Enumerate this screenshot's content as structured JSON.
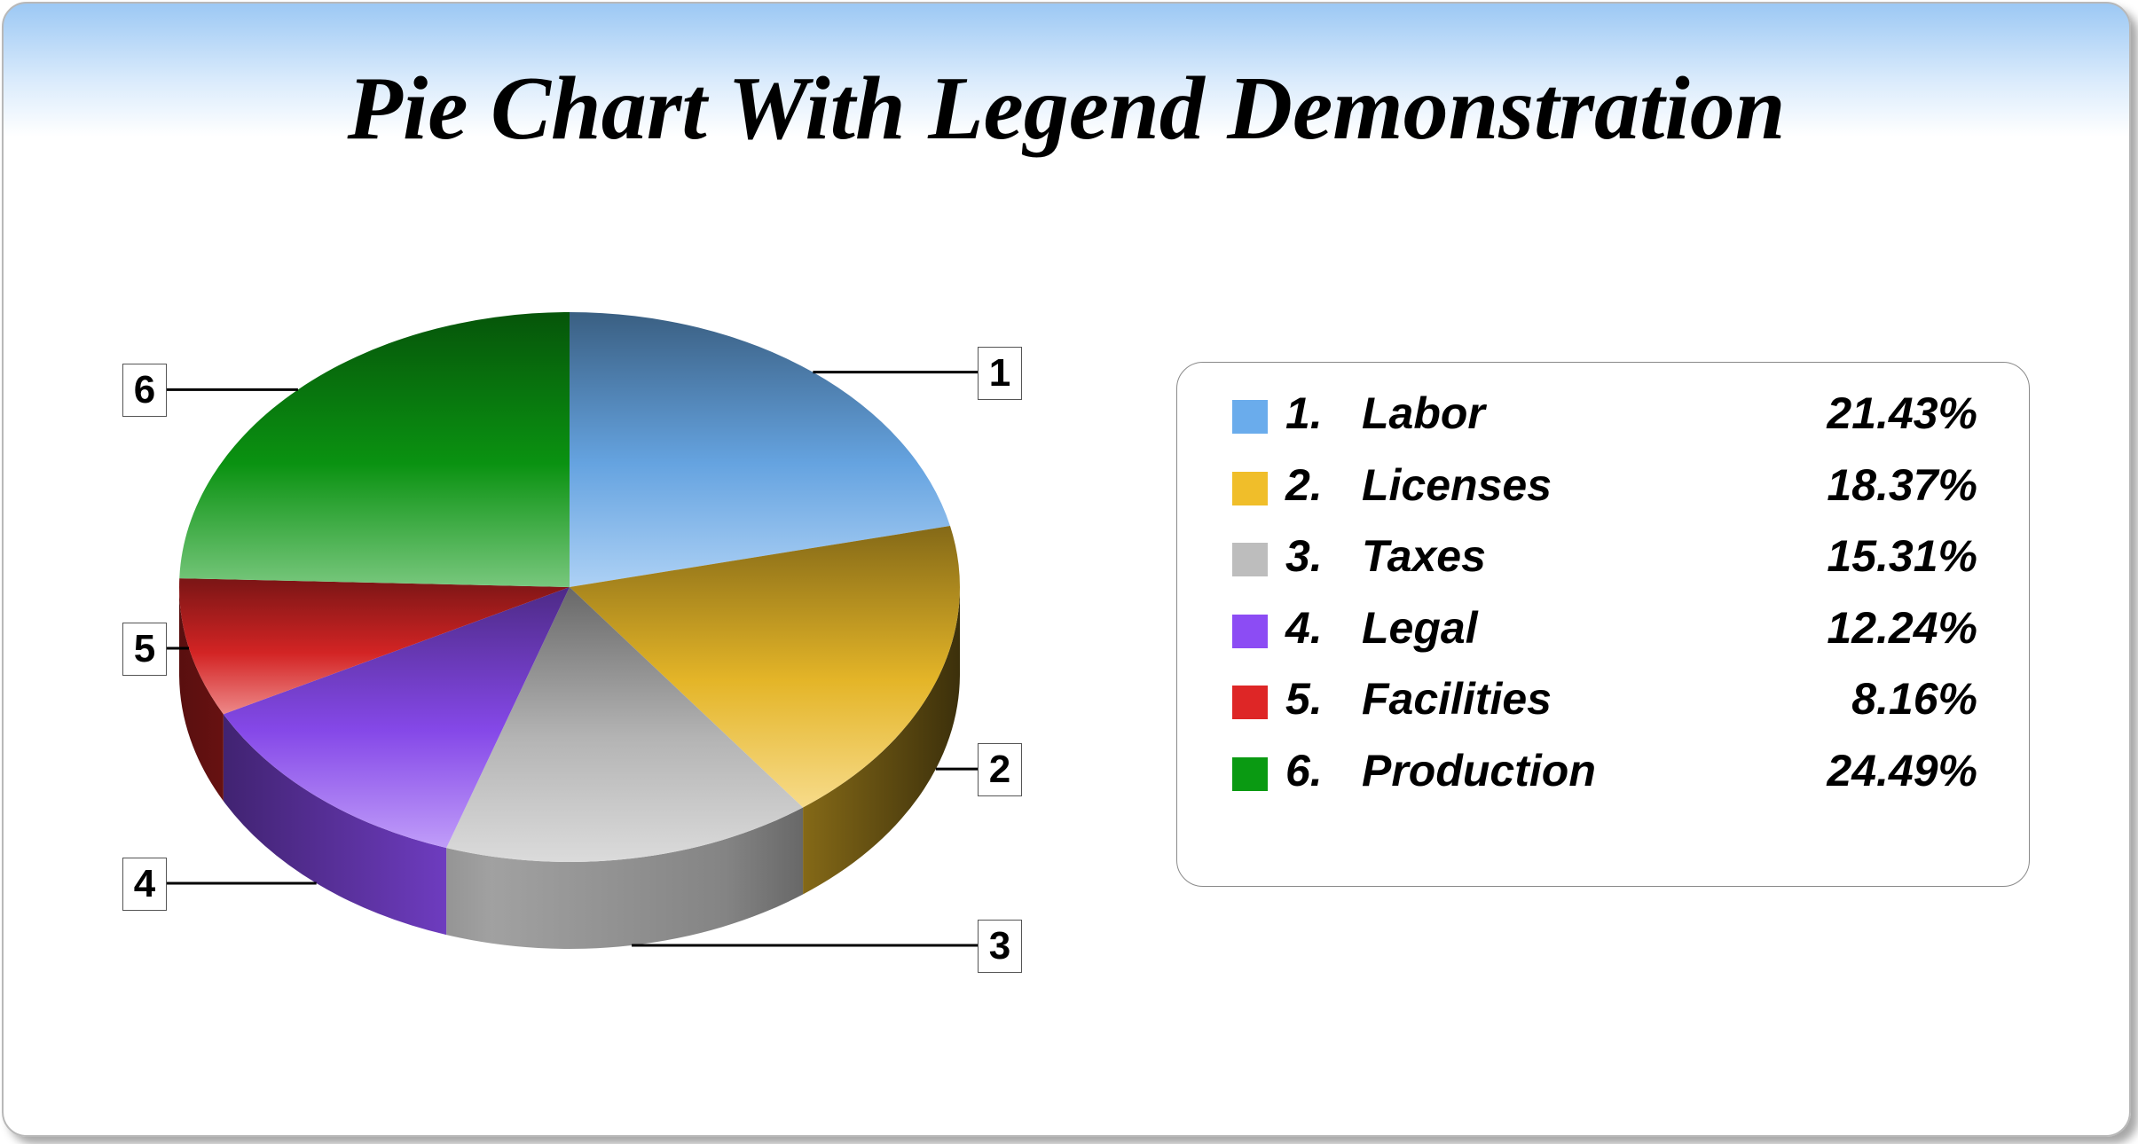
{
  "chart_data": {
    "type": "pie",
    "title": "Pie Chart With Legend Demonstration",
    "slices": [
      {
        "num": "1",
        "label": "Labor",
        "percent": "21.43%",
        "value": 21.43,
        "color": "#6aacec"
      },
      {
        "num": "2",
        "label": "Licenses",
        "percent": "18.37%",
        "value": 18.37,
        "color": "#f0be2a"
      },
      {
        "num": "3",
        "label": "Taxes",
        "percent": "15.31%",
        "value": 15.31,
        "color": "#bdbdbd"
      },
      {
        "num": "4",
        "label": "Legal",
        "percent": "12.24%",
        "value": 12.24,
        "color": "#8c4cf4"
      },
      {
        "num": "5",
        "label": "Facilities",
        "percent": "8.16%",
        "value": 8.16,
        "color": "#de2626"
      },
      {
        "num": "6",
        "label": "Production",
        "percent": "24.49%",
        "value": 24.49,
        "color": "#0a9a12"
      }
    ],
    "legend_placement": "right",
    "style": "3d"
  }
}
